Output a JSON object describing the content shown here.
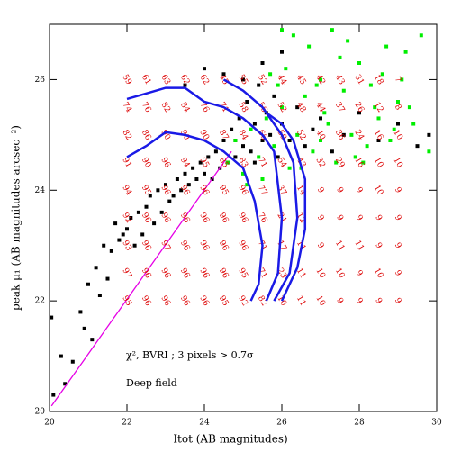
{
  "chart_data": {
    "type": "scatter",
    "xlabel": "Itot (AB magnitudes)",
    "ylabel": "peak μ₁ (AB magnitudes arcsec⁻²)",
    "annotations": [
      "χ², BVRI ; 3 pixels > 0.7σ",
      "Deep field"
    ],
    "xlim": [
      20,
      30
    ],
    "ylim": [
      20,
      27
    ],
    "xticks": [
      20,
      22,
      24,
      26,
      28,
      30
    ],
    "yticks": [
      20,
      22,
      24,
      26
    ],
    "series": [
      {
        "color": "#000000",
        "x": [
          20.05,
          20.1,
          20.3,
          20.4,
          20.6,
          20.8,
          20.9,
          21.0,
          21.1,
          21.2,
          21.3,
          21.4,
          21.5,
          21.6,
          21.7,
          21.8,
          21.9,
          22.0,
          22.1,
          22.2,
          22.3,
          22.4,
          22.5,
          22.6,
          22.7,
          22.8,
          22.9,
          23.0,
          23.1,
          23.2,
          23.3,
          23.4,
          23.5,
          23.6,
          23.7,
          23.8,
          23.9,
          24.0,
          24.1,
          24.2,
          24.3,
          24.4,
          24.5,
          24.6,
          24.7,
          24.8,
          24.9,
          25.0,
          25.1,
          25.2,
          25.3,
          25.4,
          25.5,
          25.6,
          25.7,
          25.8,
          25.9,
          26.0,
          26.2,
          26.4,
          26.6,
          26.8,
          27.0,
          27.3,
          27.6,
          28.0,
          28.5,
          29.0,
          29.5,
          29.8,
          23.5,
          24.0,
          24.5,
          25.0,
          25.5,
          26.0,
          24.8,
          25.3
        ],
        "values": [
          21.7,
          20.3,
          21.0,
          20.5,
          20.9,
          21.8,
          21.5,
          22.3,
          21.3,
          22.6,
          22.1,
          23.0,
          22.4,
          22.9,
          23.4,
          23.1,
          23.2,
          23.3,
          23.5,
          23.0,
          23.6,
          23.2,
          23.7,
          23.9,
          23.4,
          24.0,
          23.6,
          24.1,
          23.8,
          23.9,
          24.2,
          24.0,
          24.3,
          24.1,
          24.4,
          24.2,
          24.5,
          24.3,
          24.6,
          24.2,
          24.7,
          24.4,
          24.9,
          24.5,
          25.1,
          24.6,
          25.3,
          24.8,
          25.6,
          24.7,
          25.2,
          25.9,
          24.9,
          25.4,
          25.0,
          25.7,
          24.6,
          25.2,
          24.9,
          25.5,
          24.8,
          25.1,
          25.3,
          24.7,
          25.0,
          25.4,
          24.9,
          25.2,
          24.8,
          25.0,
          25.9,
          26.2,
          26.1,
          26.0,
          26.3,
          26.5,
          24.9,
          24.5
        ]
      },
      {
        "color": "#00ee00",
        "x": [
          24.6,
          24.8,
          25.0,
          25.2,
          25.4,
          25.6,
          25.8,
          26.0,
          26.2,
          26.4,
          26.6,
          26.8,
          27.0,
          27.2,
          27.4,
          27.6,
          27.8,
          28.0,
          28.2,
          28.4,
          28.6,
          28.8,
          29.0,
          29.2,
          29.4,
          29.6,
          29.8,
          25.5,
          26.1,
          26.7,
          27.3,
          27.9,
          28.5,
          29.1,
          25.9,
          26.5,
          27.1,
          27.7,
          28.3,
          28.9,
          26.3,
          26.9,
          27.5,
          28.1,
          28.7,
          29.3,
          25.1,
          25.7,
          26.0,
          27.0
        ],
        "values": [
          24.5,
          24.9,
          24.3,
          25.1,
          24.6,
          25.3,
          24.8,
          25.5,
          24.4,
          25.0,
          25.7,
          24.7,
          26.0,
          25.2,
          24.5,
          25.8,
          25.0,
          26.3,
          24.8,
          25.5,
          26.1,
          24.9,
          25.6,
          26.5,
          25.2,
          26.8,
          24.7,
          24.2,
          26.2,
          26.6,
          26.9,
          24.6,
          25.3,
          26.0,
          25.9,
          24.4,
          25.4,
          26.7,
          25.9,
          25.1,
          26.8,
          25.9,
          26.4,
          24.5,
          26.6,
          25.5,
          24.1,
          26.1,
          26.9,
          24.9
        ]
      }
    ],
    "curves_color": "#1a1ae6",
    "curves": [
      {
        "x": [
          22,
          22.5,
          23,
          23.5,
          24,
          24.5,
          25,
          25.5,
          25.8,
          26.0,
          25.9,
          25.6
        ],
        "y": [
          25.65,
          25.75,
          25.85,
          25.85,
          25.6,
          25.5,
          25.3,
          25.0,
          24.7,
          23.5,
          22.5,
          22.0
        ]
      },
      {
        "x": [
          22,
          22.5,
          23,
          23.5,
          24,
          24.5,
          25,
          25.3,
          25.5,
          25.4,
          25.2
        ],
        "y": [
          24.6,
          24.8,
          25.05,
          25.0,
          24.9,
          24.7,
          24.4,
          23.8,
          23.0,
          22.3,
          22.0
        ]
      },
      {
        "x": [
          24.5,
          25,
          25.5,
          26,
          26.3,
          26.4,
          26.2,
          25.8
        ],
        "y": [
          26.0,
          25.8,
          25.5,
          25.0,
          24.5,
          23.5,
          22.5,
          22.0
        ]
      },
      {
        "x": [
          25.6,
          26.0,
          26.3,
          26.6,
          26.6,
          26.4,
          26.0
        ],
        "y": [
          25.4,
          25.2,
          24.9,
          24.2,
          23.3,
          22.6,
          22.0
        ]
      }
    ],
    "fit_line": {
      "color": "#e600e6",
      "x": [
        20.05,
        24.7
      ],
      "y": [
        20.1,
        24.7
      ]
    },
    "completeness": {
      "color": "#dd0000",
      "x": [
        22,
        22.5,
        23,
        23.5,
        24,
        24.5,
        25,
        25.5,
        26,
        26.5,
        27,
        27.5,
        28,
        28.5,
        29
      ],
      "y": [
        26,
        25.5,
        25,
        24.5,
        24,
        23.5,
        23,
        22.5,
        22
      ],
      "values": [
        [
          59,
          61,
          63,
          62,
          62,
          45,
          55,
          52,
          44,
          45,
          42,
          43,
          31,
          18,
          7
        ],
        [
          74,
          76,
          82,
          84,
          76,
          71,
          58,
          56,
          52,
          48,
          44,
          37,
          26,
          12,
          8
        ],
        [
          82,
          86,
          90,
          90,
          90,
          87,
          84,
          66,
          59,
          52,
          40,
          36,
          24,
          16,
          10
        ],
        [
          91,
          90,
          96,
          94,
          95,
          85,
          83,
          71,
          54,
          43,
          32,
          29,
          16,
          10,
          10
        ],
        [
          94,
          95,
          96,
          96,
          96,
          95,
          96,
          77,
          37,
          14,
          9,
          9,
          9,
          10,
          9
        ],
        [
          92,
          96,
          96,
          96,
          96,
          96,
          96,
          76,
          21,
          12,
          9,
          9,
          9,
          9,
          9
        ],
        [
          93,
          96,
          97,
          96,
          96,
          96,
          96,
          71,
          17,
          11,
          9,
          11,
          11,
          9,
          9
        ],
        [
          97,
          96,
          96,
          96,
          96,
          96,
          95,
          71,
          23,
          11,
          10,
          10,
          9,
          10,
          9
        ],
        [
          95,
          96,
          96,
          96,
          96,
          95,
          92,
          82,
          10,
          11,
          10,
          9,
          9,
          9,
          9
        ]
      ]
    }
  }
}
